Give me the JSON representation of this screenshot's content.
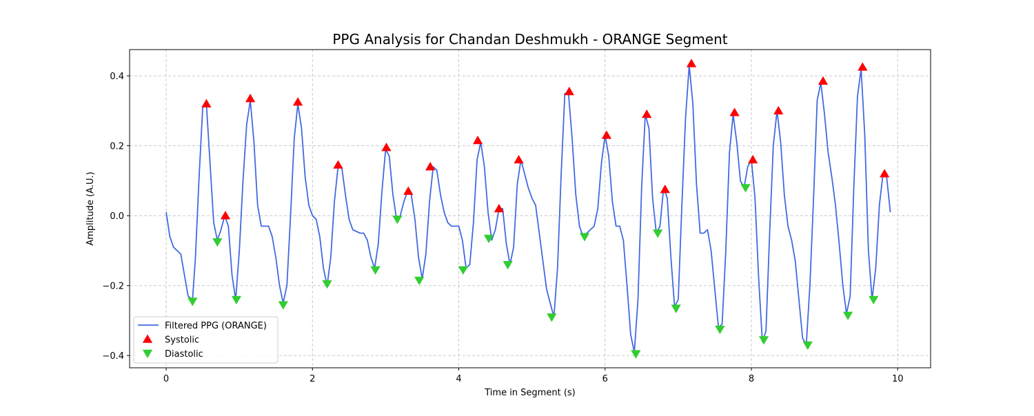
{
  "chart_data": {
    "type": "line",
    "title": "PPG Analysis for Chandan Deshmukh - ORANGE Segment",
    "xlabel": "Time in Segment (s)",
    "ylabel": "Amplitude (A.U.)",
    "xlim": [
      -0.5,
      10.45
    ],
    "ylim": [
      -0.435,
      0.475
    ],
    "xticks": [
      0,
      2,
      4,
      6,
      8,
      10
    ],
    "yticks": [
      -0.4,
      -0.2,
      0.0,
      0.2,
      0.4
    ],
    "xtick_labels": [
      "0",
      "2",
      "4",
      "6",
      "8",
      "10"
    ],
    "ytick_labels": [
      "−0.4",
      "−0.2",
      "0.0",
      "0.2",
      "0.4"
    ],
    "grid": true,
    "legend_position": "lower-left",
    "series": [
      {
        "name": "Filtered PPG (ORANGE)",
        "color": "#4169e1",
        "kind": "line",
        "x": [
          0.0,
          0.05,
          0.1,
          0.15,
          0.2,
          0.25,
          0.3,
          0.36,
          0.4,
          0.45,
          0.5,
          0.55,
          0.6,
          0.65,
          0.7,
          0.75,
          0.8,
          0.85,
          0.9,
          0.95,
          1.0,
          1.05,
          1.1,
          1.15,
          1.2,
          1.25,
          1.3,
          1.35,
          1.4,
          1.45,
          1.5,
          1.55,
          1.6,
          1.65,
          1.7,
          1.75,
          1.8,
          1.85,
          1.9,
          1.95,
          2.0,
          2.05,
          2.1,
          2.15,
          2.2,
          2.25,
          2.3,
          2.35,
          2.4,
          2.45,
          2.5,
          2.55,
          2.6,
          2.65,
          2.7,
          2.75,
          2.8,
          2.85,
          2.9,
          2.95,
          3.0,
          3.05,
          3.1,
          3.15,
          3.2,
          3.25,
          3.3,
          3.35,
          3.4,
          3.45,
          3.5,
          3.55,
          3.6,
          3.65,
          3.7,
          3.75,
          3.8,
          3.85,
          3.9,
          3.95,
          4.0,
          4.05,
          4.1,
          4.15,
          4.2,
          4.25,
          4.3,
          4.35,
          4.4,
          4.45,
          4.5,
          4.55,
          4.6,
          4.65,
          4.7,
          4.75,
          4.8,
          4.85,
          4.9,
          4.95,
          5.0,
          5.05,
          5.1,
          5.15,
          5.2,
          5.25,
          5.3,
          5.35,
          5.4,
          5.45,
          5.5,
          5.55,
          5.6,
          5.65,
          5.7,
          5.75,
          5.8,
          5.85,
          5.9,
          5.95,
          6.0,
          6.05,
          6.1,
          6.15,
          6.2,
          6.25,
          6.3,
          6.35,
          6.4,
          6.45,
          6.5,
          6.55,
          6.6,
          6.65,
          6.7,
          6.75,
          6.8,
          6.85,
          6.9,
          6.95,
          7.0,
          7.05,
          7.1,
          7.15,
          7.2,
          7.25,
          7.3,
          7.35,
          7.4,
          7.45,
          7.5,
          7.55,
          7.6,
          7.65,
          7.7,
          7.75,
          7.8,
          7.85,
          7.9,
          7.95,
          8.0,
          8.05,
          8.1,
          8.15,
          8.2,
          8.25,
          8.3,
          8.35,
          8.4,
          8.45,
          8.5,
          8.55,
          8.6,
          8.65,
          8.7,
          8.75,
          8.8,
          8.85,
          8.9,
          8.95,
          9.0,
          9.05,
          9.1,
          9.15,
          9.2,
          9.25,
          9.3,
          9.35,
          9.4,
          9.45,
          9.5,
          9.55,
          9.6,
          9.65,
          9.7,
          9.75,
          9.8,
          9.85,
          9.9
        ],
        "y": [
          0.01,
          -0.06,
          -0.09,
          -0.1,
          -0.11,
          -0.17,
          -0.23,
          -0.24,
          -0.12,
          0.11,
          0.31,
          0.32,
          0.15,
          -0.02,
          -0.07,
          -0.04,
          0.0,
          -0.03,
          -0.17,
          -0.24,
          -0.1,
          0.1,
          0.26,
          0.33,
          0.21,
          0.03,
          -0.03,
          -0.03,
          -0.03,
          -0.06,
          -0.12,
          -0.2,
          -0.25,
          -0.2,
          0.0,
          0.22,
          0.32,
          0.25,
          0.11,
          0.03,
          0.0,
          -0.01,
          -0.06,
          -0.15,
          -0.2,
          -0.12,
          0.04,
          0.14,
          0.14,
          0.06,
          -0.01,
          -0.04,
          -0.045,
          -0.05,
          -0.05,
          -0.07,
          -0.12,
          -0.15,
          -0.08,
          0.07,
          0.19,
          0.17,
          0.06,
          -0.01,
          0.0,
          0.04,
          0.07,
          0.06,
          -0.01,
          -0.12,
          -0.18,
          -0.11,
          0.04,
          0.14,
          0.13,
          0.06,
          0.01,
          -0.02,
          -0.03,
          -0.03,
          -0.03,
          -0.07,
          -0.15,
          -0.14,
          -0.02,
          0.16,
          0.21,
          0.14,
          0.01,
          -0.07,
          -0.04,
          0.02,
          0.02,
          -0.08,
          -0.14,
          -0.09,
          0.09,
          0.16,
          0.12,
          0.08,
          0.05,
          0.03,
          -0.05,
          -0.13,
          -0.21,
          -0.25,
          -0.29,
          -0.15,
          0.12,
          0.35,
          0.35,
          0.22,
          0.06,
          -0.03,
          -0.06,
          -0.05,
          -0.04,
          -0.03,
          0.02,
          0.15,
          0.23,
          0.17,
          0.04,
          -0.03,
          -0.03,
          -0.07,
          -0.2,
          -0.34,
          -0.39,
          -0.24,
          0.08,
          0.29,
          0.25,
          0.05,
          -0.05,
          -0.03,
          0.08,
          0.05,
          -0.12,
          -0.26,
          -0.24,
          0.03,
          0.28,
          0.43,
          0.32,
          0.09,
          -0.05,
          -0.05,
          -0.04,
          -0.1,
          -0.21,
          -0.32,
          -0.31,
          -0.1,
          0.18,
          0.29,
          0.21,
          0.1,
          0.08,
          0.14,
          0.16,
          0.05,
          -0.18,
          -0.36,
          -0.33,
          -0.05,
          0.2,
          0.3,
          0.21,
          0.06,
          -0.03,
          -0.07,
          -0.13,
          -0.24,
          -0.35,
          -0.37,
          -0.2,
          0.05,
          0.33,
          0.38,
          0.29,
          0.18,
          0.11,
          0.03,
          -0.08,
          -0.2,
          -0.28,
          -0.23,
          0.08,
          0.34,
          0.42,
          0.23,
          -0.1,
          -0.24,
          -0.15,
          0.03,
          0.12,
          0.11,
          0.01
        ]
      },
      {
        "name": "Systolic",
        "color": "#ff0000",
        "kind": "marker-up",
        "x": [
          0.55,
          0.81,
          1.15,
          1.8,
          2.35,
          3.01,
          3.31,
          3.61,
          4.26,
          4.55,
          4.82,
          5.51,
          6.02,
          6.57,
          6.82,
          7.18,
          7.77,
          8.02,
          8.37,
          8.98,
          9.52,
          9.82
        ],
        "y": [
          0.32,
          0.0,
          0.335,
          0.325,
          0.145,
          0.195,
          0.07,
          0.14,
          0.215,
          0.02,
          0.16,
          0.355,
          0.23,
          0.29,
          0.075,
          0.435,
          0.295,
          0.16,
          0.3,
          0.385,
          0.425,
          0.12
        ]
      },
      {
        "name": "Diastolic",
        "color": "#32cd32",
        "kind": "marker-down",
        "x": [
          0.36,
          0.7,
          0.96,
          1.6,
          2.2,
          2.86,
          3.16,
          3.46,
          4.06,
          4.41,
          4.67,
          5.27,
          5.72,
          6.42,
          6.72,
          6.97,
          7.57,
          7.92,
          8.17,
          8.77,
          9.32,
          9.67
        ],
        "y": [
          -0.245,
          -0.075,
          -0.24,
          -0.255,
          -0.195,
          -0.155,
          -0.01,
          -0.185,
          -0.155,
          -0.065,
          -0.14,
          -0.29,
          -0.06,
          -0.395,
          -0.05,
          -0.265,
          -0.325,
          0.08,
          -0.355,
          -0.37,
          -0.285,
          -0.24
        ]
      }
    ]
  }
}
